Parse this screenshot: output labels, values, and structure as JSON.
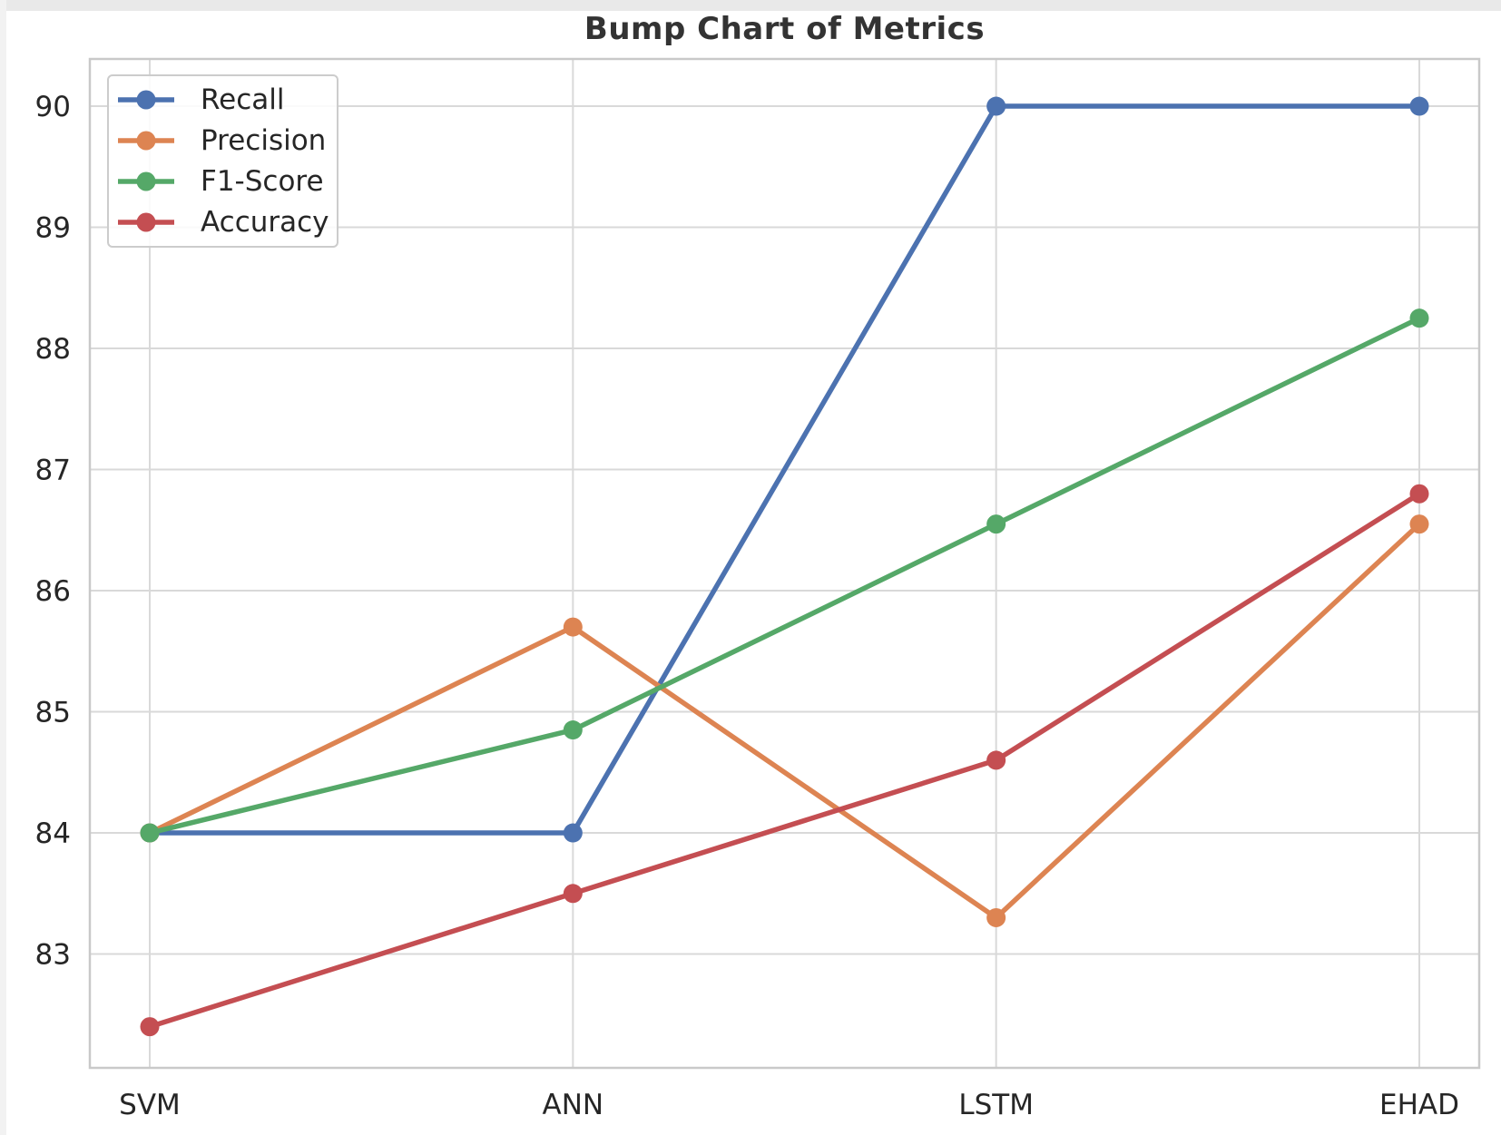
{
  "chart_data": {
    "type": "line",
    "subtype": "bump-chart",
    "title": "Bump Chart of Metrics",
    "categories": [
      "SVM",
      "ANN",
      "LSTM",
      "EHAD"
    ],
    "series": [
      {
        "name": "Recall",
        "color": "#4c72b0",
        "values": [
          84.0,
          84.0,
          90.0,
          90.0
        ]
      },
      {
        "name": "Precision",
        "color": "#dd8452",
        "values": [
          84.0,
          85.7,
          83.3,
          86.55
        ]
      },
      {
        "name": "F1-Score",
        "color": "#55a868",
        "values": [
          84.0,
          84.85,
          86.55,
          88.25
        ]
      },
      {
        "name": "Accuracy",
        "color": "#c44e52",
        "values": [
          82.4,
          83.5,
          84.6,
          86.8
        ]
      }
    ],
    "xlabel": "",
    "ylabel": "",
    "yticks": [
      83,
      84,
      85,
      86,
      87,
      88,
      89,
      90
    ],
    "ylim": [
      82.06,
      90.39
    ],
    "grid": true,
    "legend_position": "upper-left",
    "style": {
      "grid_color": "#d9d9d9",
      "spine_color": "#c9c9c9",
      "tick_text_color": "#262626",
      "plot_background": "#ffffff"
    }
  }
}
